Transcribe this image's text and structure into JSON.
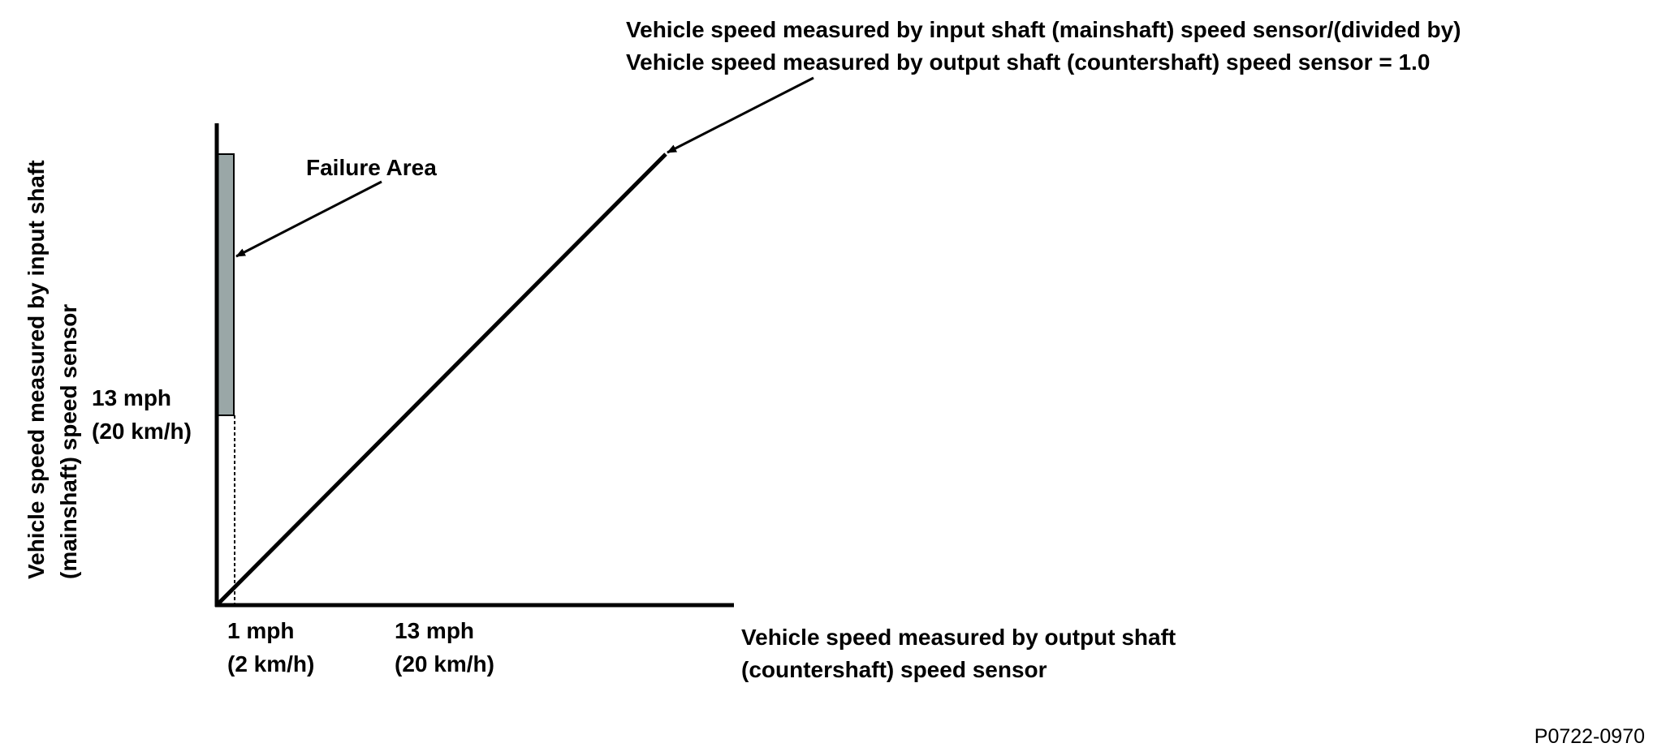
{
  "diagram": {
    "callout": {
      "line1": "Vehicle speed measured by input shaft (mainshaft) speed sensor/(divided by)",
      "line2": "Vehicle speed measured by output shaft (countershaft) speed sensor = 1.0"
    },
    "failure_area_label": "Failure Area",
    "y_axis": {
      "line1": "Vehicle speed measured by input shaft",
      "line2": "(mainshaft) speed sensor"
    },
    "x_axis": {
      "line1": "Vehicle speed measured by output shaft",
      "line2": "(countershaft) speed sensor"
    },
    "y_tick": {
      "line1": "13 mph",
      "line2": "(20 km/h)"
    },
    "x_ticks": [
      {
        "line1": "1 mph",
        "line2": "(2 km/h)"
      },
      {
        "line1": "13 mph",
        "line2": "(20 km/h)"
      }
    ],
    "figure_id": "P0722-0970",
    "colors": {
      "failure_fill": "#9aa7a7",
      "line": "#000000"
    }
  }
}
